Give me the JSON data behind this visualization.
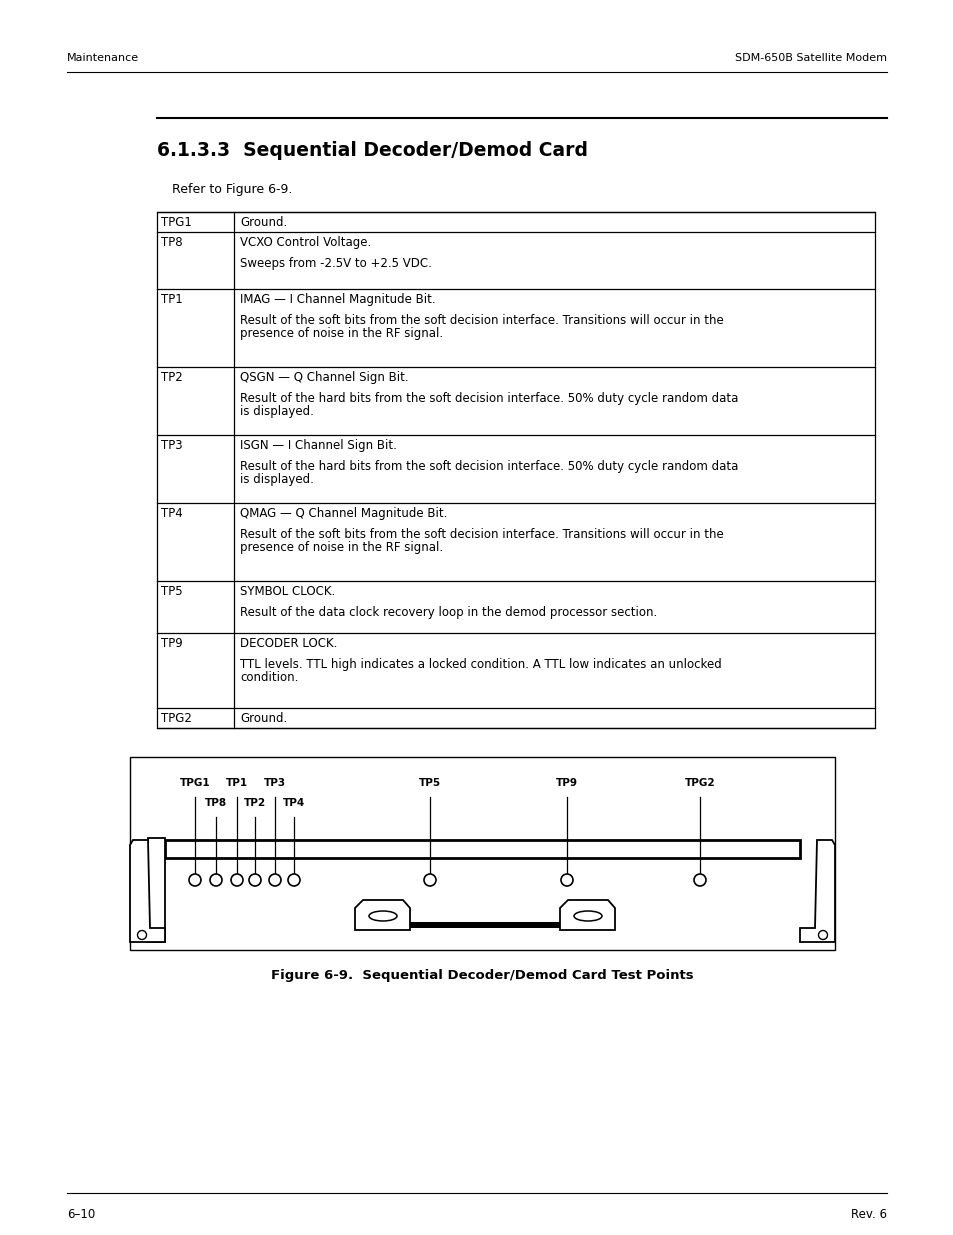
{
  "header_left": "Maintenance",
  "header_right": "SDM-650B Satellite Modem",
  "section_title": "6.1.3.3  Sequential Decoder/Demod Card",
  "refer_text": "Refer to Figure 6-9.",
  "table_rows": [
    {
      "col1": "TPG1",
      "col2": "Ground."
    },
    {
      "col1": "TP8",
      "col2": "VCXO Control Voltage.\n\nSweeps from -2.5V to +2.5 VDC."
    },
    {
      "col1": "TP1",
      "col2": "IMAG — I Channel Magnitude Bit.\n\nResult of the soft bits from the soft decision interface. Transitions will occur in the\npresence of noise in the RF signal."
    },
    {
      "col1": "TP2",
      "col2": "QSGN — Q Channel Sign Bit.\n\nResult of the hard bits from the soft decision interface. 50% duty cycle random data\nis displayed."
    },
    {
      "col1": "TP3",
      "col2": "ISGN — I Channel Sign Bit.\n\nResult of the hard bits from the soft decision interface. 50% duty cycle random data\nis displayed."
    },
    {
      "col1": "TP4",
      "col2": "QMAG — Q Channel Magnitude Bit.\n\nResult of the soft bits from the soft decision interface. Transitions will occur in the\npresence of noise in the RF signal."
    },
    {
      "col1": "TP5",
      "col2": "SYMBOL CLOCK.\n\nResult of the data clock recovery loop in the demod processor section."
    },
    {
      "col1": "TP9",
      "col2": "DECODER LOCK.\n\nTTL levels. TTL high indicates a locked condition. A TTL low indicates an unlocked\ncondition."
    },
    {
      "col1": "TPG2",
      "col2": "Ground."
    }
  ],
  "figure_caption": "Figure 6-9.  Sequential Decoder/Demod Card Test Points",
  "footer_left": "6–10",
  "footer_right": "Rev. 6",
  "bg_color": "#ffffff",
  "text_color": "#000000"
}
